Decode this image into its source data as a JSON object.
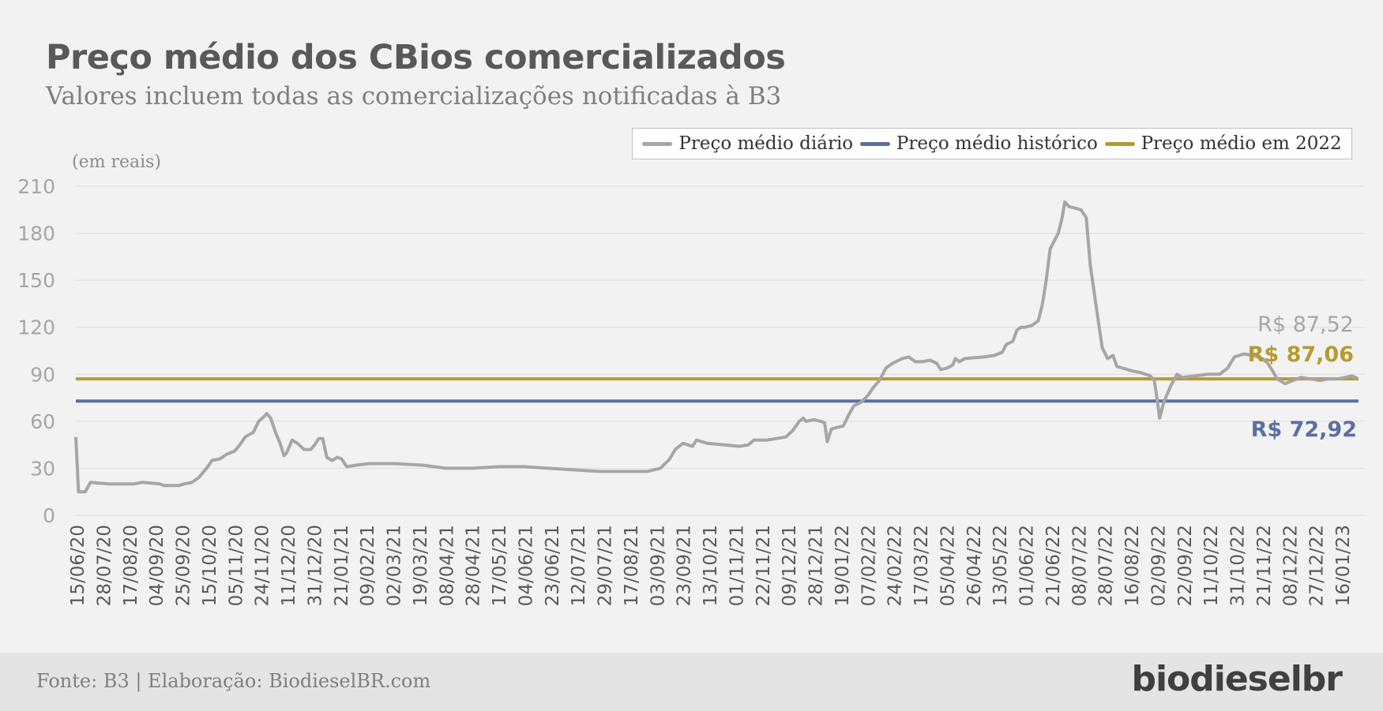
{
  "header": {
    "title": "Preço médio dos CBios comercializados",
    "subtitle": "Valores incluem todas as comercializações notificadas à B3"
  },
  "legend": {
    "items": [
      {
        "label": "Preço médio diário",
        "color": "#a6a6a6"
      },
      {
        "label": "Preço médio histórico",
        "color": "#5b6fa3"
      },
      {
        "label": "Preço médio em 2022",
        "color": "#b59b30"
      }
    ]
  },
  "unit_label": "(em reais)",
  "annotations": {
    "last_daily": "R$ 87,52",
    "avg_2022": "R$ 87,06",
    "avg_historic": "R$ 72,92"
  },
  "footer": {
    "source": "Fonte: B3 | Elaboração: BiodieselBR.com",
    "logo": "biodieselbr"
  },
  "chart_data": {
    "type": "line",
    "ylim": [
      0,
      210
    ],
    "yticks": [
      0,
      30,
      60,
      90,
      120,
      150,
      180,
      210
    ],
    "xlim": [
      "2020-06-15",
      "2023-02-01"
    ],
    "x_tick_labels": [
      "15/06/20",
      "28/07/20",
      "17/08/20",
      "04/09/20",
      "25/09/20",
      "15/10/20",
      "05/11/20",
      "24/11/20",
      "11/12/20",
      "31/12/20",
      "21/01/21",
      "09/02/21",
      "02/03/21",
      "19/03/21",
      "08/04/21",
      "28/04/21",
      "17/05/21",
      "04/06/21",
      "23/06/21",
      "12/07/21",
      "29/07/21",
      "17/08/21",
      "03/09/21",
      "23/09/21",
      "13/10/21",
      "01/11/21",
      "22/11/21",
      "09/12/21",
      "28/12/21",
      "19/01/22",
      "07/02/22",
      "24/02/22",
      "17/03/22",
      "05/04/22",
      "26/04/22",
      "13/05/22",
      "01/06/22",
      "21/06/22",
      "08/07/22",
      "28/07/22",
      "16/08/22",
      "02/09/22",
      "22/09/22",
      "11/10/22",
      "31/10/22",
      "21/11/22",
      "08/12/22",
      "27/12/22",
      "16/01/23"
    ],
    "grid": true,
    "legend_position": "top-right",
    "series": [
      {
        "name": "Preço médio diário",
        "color": "#a6a6a6",
        "points": [
          [
            "2020-06-15",
            50
          ],
          [
            "2020-06-17",
            15
          ],
          [
            "2020-06-22",
            15
          ],
          [
            "2020-06-26",
            21
          ],
          [
            "2020-07-10",
            20
          ],
          [
            "2020-07-28",
            20
          ],
          [
            "2020-08-04",
            21
          ],
          [
            "2020-08-17",
            20
          ],
          [
            "2020-08-20",
            19
          ],
          [
            "2020-08-31",
            19
          ],
          [
            "2020-09-04",
            20
          ],
          [
            "2020-09-10",
            21
          ],
          [
            "2020-09-15",
            24
          ],
          [
            "2020-09-21",
            30
          ],
          [
            "2020-09-25",
            35
          ],
          [
            "2020-10-01",
            36
          ],
          [
            "2020-10-06",
            39
          ],
          [
            "2020-10-12",
            41
          ],
          [
            "2020-10-15",
            44
          ],
          [
            "2020-10-20",
            50
          ],
          [
            "2020-10-26",
            53
          ],
          [
            "2020-10-30",
            60
          ],
          [
            "2020-11-03",
            63
          ],
          [
            "2020-11-05",
            65
          ],
          [
            "2020-11-08",
            62
          ],
          [
            "2020-11-12",
            52
          ],
          [
            "2020-11-15",
            46
          ],
          [
            "2020-11-18",
            38
          ],
          [
            "2020-11-20",
            40
          ],
          [
            "2020-11-24",
            48
          ],
          [
            "2020-11-28",
            46
          ],
          [
            "2020-12-03",
            42
          ],
          [
            "2020-12-08",
            42
          ],
          [
            "2020-12-11",
            45
          ],
          [
            "2020-12-14",
            49
          ],
          [
            "2020-12-17",
            49
          ],
          [
            "2020-12-20",
            37
          ],
          [
            "2020-12-24",
            35
          ],
          [
            "2020-12-28",
            37
          ],
          [
            "2020-12-31",
            36
          ],
          [
            "2021-01-04",
            31
          ],
          [
            "2021-01-11",
            32
          ],
          [
            "2021-01-21",
            33
          ],
          [
            "2021-02-09",
            33
          ],
          [
            "2021-03-02",
            32
          ],
          [
            "2021-03-19",
            30
          ],
          [
            "2021-04-08",
            30
          ],
          [
            "2021-04-28",
            31
          ],
          [
            "2021-05-17",
            31
          ],
          [
            "2021-06-04",
            30
          ],
          [
            "2021-06-23",
            29
          ],
          [
            "2021-07-12",
            28
          ],
          [
            "2021-07-29",
            28
          ],
          [
            "2021-08-17",
            28
          ],
          [
            "2021-08-27",
            30
          ],
          [
            "2021-09-03",
            36
          ],
          [
            "2021-09-07",
            42
          ],
          [
            "2021-09-13",
            46
          ],
          [
            "2021-09-20",
            44
          ],
          [
            "2021-09-23",
            48
          ],
          [
            "2021-10-01",
            46
          ],
          [
            "2021-10-13",
            45
          ],
          [
            "2021-10-25",
            44
          ],
          [
            "2021-11-01",
            45
          ],
          [
            "2021-11-05",
            48
          ],
          [
            "2021-11-15",
            48
          ],
          [
            "2021-11-22",
            49
          ],
          [
            "2021-11-29",
            50
          ],
          [
            "2021-12-04",
            54
          ],
          [
            "2021-12-09",
            60
          ],
          [
            "2021-12-12",
            62
          ],
          [
            "2021-12-14",
            60
          ],
          [
            "2021-12-20",
            61
          ],
          [
            "2021-12-25",
            60
          ],
          [
            "2021-12-28",
            59
          ],
          [
            "2021-12-30",
            47
          ],
          [
            "2022-01-02",
            55
          ],
          [
            "2022-01-06",
            56
          ],
          [
            "2022-01-11",
            57
          ],
          [
            "2022-01-15",
            64
          ],
          [
            "2022-01-19",
            70
          ],
          [
            "2022-01-24",
            72
          ],
          [
            "2022-01-29",
            76
          ],
          [
            "2022-02-02",
            81
          ],
          [
            "2022-02-07",
            86
          ],
          [
            "2022-02-12",
            94
          ],
          [
            "2022-02-17",
            97
          ],
          [
            "2022-02-24",
            100
          ],
          [
            "2022-03-01",
            101
          ],
          [
            "2022-03-06",
            98
          ],
          [
            "2022-03-11",
            98
          ],
          [
            "2022-03-17",
            99
          ],
          [
            "2022-03-22",
            97
          ],
          [
            "2022-03-25",
            93
          ],
          [
            "2022-03-30",
            94
          ],
          [
            "2022-04-03",
            96
          ],
          [
            "2022-04-05",
            100
          ],
          [
            "2022-04-08",
            98
          ],
          [
            "2022-04-12",
            100
          ],
          [
            "2022-04-26",
            101
          ],
          [
            "2022-05-04",
            102
          ],
          [
            "2022-05-10",
            104
          ],
          [
            "2022-05-13",
            109
          ],
          [
            "2022-05-18",
            111
          ],
          [
            "2022-05-21",
            118
          ],
          [
            "2022-05-24",
            120
          ],
          [
            "2022-05-27",
            120
          ],
          [
            "2022-06-01",
            121
          ],
          [
            "2022-06-06",
            124
          ],
          [
            "2022-06-09",
            134
          ],
          [
            "2022-06-12",
            150
          ],
          [
            "2022-06-15",
            170
          ],
          [
            "2022-06-18",
            175
          ],
          [
            "2022-06-21",
            180
          ],
          [
            "2022-06-24",
            190
          ],
          [
            "2022-06-26",
            200
          ],
          [
            "2022-06-29",
            197
          ],
          [
            "2022-07-04",
            196
          ],
          [
            "2022-07-08",
            195
          ],
          [
            "2022-07-12",
            190
          ],
          [
            "2022-07-15",
            160
          ],
          [
            "2022-07-20",
            130
          ],
          [
            "2022-07-24",
            107
          ],
          [
            "2022-07-28",
            100
          ],
          [
            "2022-08-01",
            102
          ],
          [
            "2022-08-04",
            95
          ],
          [
            "2022-08-08",
            94
          ],
          [
            "2022-08-12",
            93
          ],
          [
            "2022-08-16",
            92
          ],
          [
            "2022-08-22",
            91
          ],
          [
            "2022-08-29",
            89
          ],
          [
            "2022-09-01",
            86
          ],
          [
            "2022-09-03",
            75
          ],
          [
            "2022-09-05",
            62
          ],
          [
            "2022-09-08",
            72
          ],
          [
            "2022-09-13",
            82
          ],
          [
            "2022-09-18",
            90
          ],
          [
            "2022-09-22",
            88
          ],
          [
            "2022-10-01",
            89
          ],
          [
            "2022-10-11",
            90
          ],
          [
            "2022-10-20",
            90
          ],
          [
            "2022-10-26",
            94
          ],
          [
            "2022-10-31",
            101
          ],
          [
            "2022-11-07",
            103
          ],
          [
            "2022-11-14",
            102
          ],
          [
            "2022-11-21",
            100
          ],
          [
            "2022-11-25",
            97
          ],
          [
            "2022-11-28",
            93
          ],
          [
            "2022-12-02",
            87
          ],
          [
            "2022-12-08",
            84
          ],
          [
            "2022-12-14",
            86
          ],
          [
            "2022-12-20",
            88
          ],
          [
            "2022-12-27",
            87
          ],
          [
            "2023-01-03",
            86
          ],
          [
            "2023-01-10",
            87
          ],
          [
            "2023-01-16",
            87
          ],
          [
            "2023-01-22",
            88
          ],
          [
            "2023-01-27",
            89
          ],
          [
            "2023-01-31",
            87.52
          ]
        ]
      },
      {
        "name": "Preço médio histórico",
        "color": "#5b6fa3",
        "constant": 72.92
      },
      {
        "name": "Preço médio em 2022",
        "color": "#b59b30",
        "constant": 87.06
      }
    ]
  }
}
